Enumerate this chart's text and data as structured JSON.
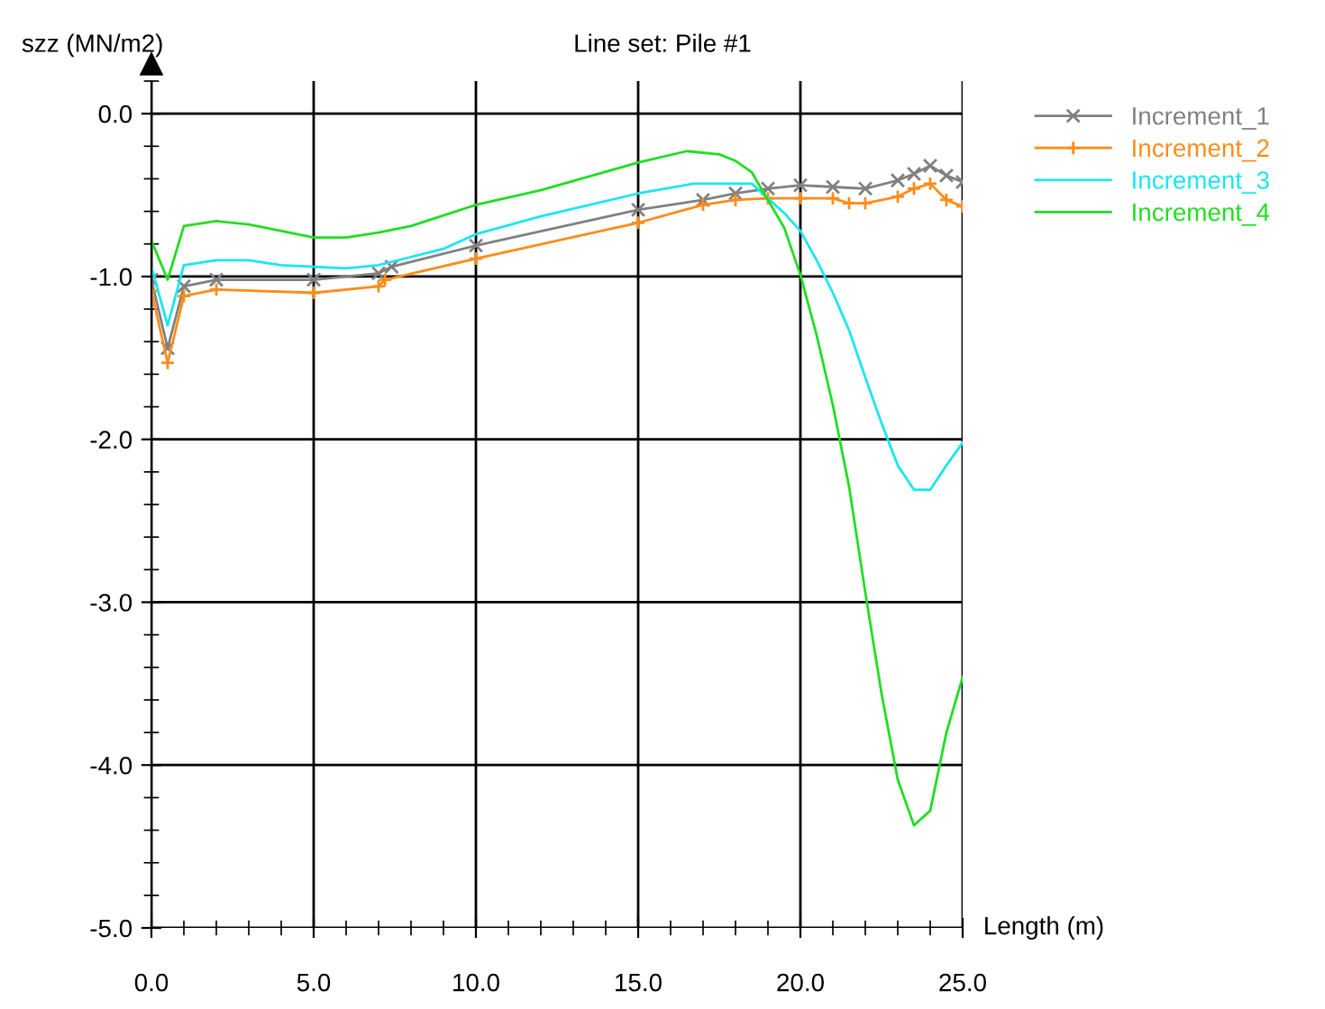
{
  "chart_data": {
    "type": "line",
    "title": "Line set: Pile #1",
    "xlabel": "Length (m)",
    "ylabel": "szz (MN/m2)",
    "xlim": [
      0,
      25
    ],
    "ylim": [
      -5,
      0.2
    ],
    "xticks": [
      {
        "value": 0,
        "label": "0.0"
      },
      {
        "value": 5,
        "label": "5.0"
      },
      {
        "value": 10,
        "label": "10.0"
      },
      {
        "value": 15,
        "label": "15.0"
      },
      {
        "value": 20,
        "label": "20.0"
      },
      {
        "value": 25,
        "label": "25.0"
      }
    ],
    "yticks": [
      {
        "value": 0,
        "label": "0.0"
      },
      {
        "value": -1,
        "label": "-1.0"
      },
      {
        "value": -2,
        "label": "-2.0"
      },
      {
        "value": -3,
        "label": "-3.0"
      },
      {
        "value": -4,
        "label": "-4.0"
      },
      {
        "value": -5,
        "label": "-5.0"
      }
    ],
    "grid": true,
    "legend": "top right",
    "series": [
      {
        "name": "Increment_1",
        "color": "#808080",
        "marker": "cross",
        "x": [
          0,
          0.5,
          1,
          2,
          5,
          7,
          7.4,
          10,
          15,
          17,
          18,
          19,
          20,
          21,
          22,
          23,
          23.5,
          24,
          24.5,
          25
        ],
        "values": [
          -1.02,
          -1.44,
          -1.06,
          -1.02,
          -1.02,
          -0.98,
          -0.94,
          -0.81,
          -0.59,
          -0.53,
          -0.49,
          -0.46,
          -0.44,
          -0.45,
          -0.46,
          -0.41,
          -0.37,
          -0.32,
          -0.38,
          -0.42
        ]
      },
      {
        "name": "Increment_2",
        "color": "#ff8c1a",
        "marker": "plus",
        "x": [
          0,
          0.5,
          1,
          2,
          5,
          7,
          7.2,
          10,
          15,
          17,
          18,
          19,
          20,
          21,
          21.5,
          22,
          23,
          23.5,
          24,
          24.5,
          25
        ],
        "values": [
          -1.09,
          -1.53,
          -1.12,
          -1.08,
          -1.1,
          -1.06,
          -1.02,
          -0.89,
          -0.67,
          -0.56,
          -0.53,
          -0.52,
          -0.52,
          -0.52,
          -0.55,
          -0.55,
          -0.51,
          -0.46,
          -0.43,
          -0.53,
          -0.57
        ]
      },
      {
        "name": "Increment_3",
        "color": "#1ae6f0",
        "marker": "none",
        "x": [
          0,
          0.5,
          1,
          2,
          3,
          4,
          5,
          6,
          7,
          8,
          9,
          10,
          12,
          15,
          16.7,
          18.5,
          19.5,
          20,
          20.5,
          21,
          21.5,
          22,
          22.5,
          23,
          23.5,
          24,
          24.5,
          25
        ],
        "values": [
          -0.94,
          -1.3,
          -0.93,
          -0.9,
          -0.9,
          -0.93,
          -0.94,
          -0.95,
          -0.93,
          -0.88,
          -0.83,
          -0.74,
          -0.63,
          -0.49,
          -0.43,
          -0.43,
          -0.61,
          -0.72,
          -0.9,
          -1.1,
          -1.33,
          -1.62,
          -1.9,
          -2.16,
          -2.31,
          -2.31,
          -2.16,
          -2.02
        ]
      },
      {
        "name": "Increment_4",
        "color": "#22dd22",
        "marker": "none",
        "x": [
          0,
          0.5,
          1,
          2,
          3,
          4,
          5,
          6,
          7,
          8,
          10,
          12,
          15,
          16.5,
          17.5,
          18,
          18.5,
          19.5,
          20,
          20.5,
          21,
          21.5,
          22,
          22.5,
          23,
          23.5,
          24,
          24.5,
          25
        ],
        "values": [
          -0.78,
          -1.02,
          -0.69,
          -0.66,
          -0.68,
          -0.72,
          -0.76,
          -0.76,
          -0.73,
          -0.69,
          -0.56,
          -0.47,
          -0.3,
          -0.23,
          -0.25,
          -0.29,
          -0.36,
          -0.7,
          -0.99,
          -1.36,
          -1.79,
          -2.29,
          -2.94,
          -3.56,
          -4.09,
          -4.37,
          -4.28,
          -3.8,
          -3.46
        ]
      }
    ]
  }
}
